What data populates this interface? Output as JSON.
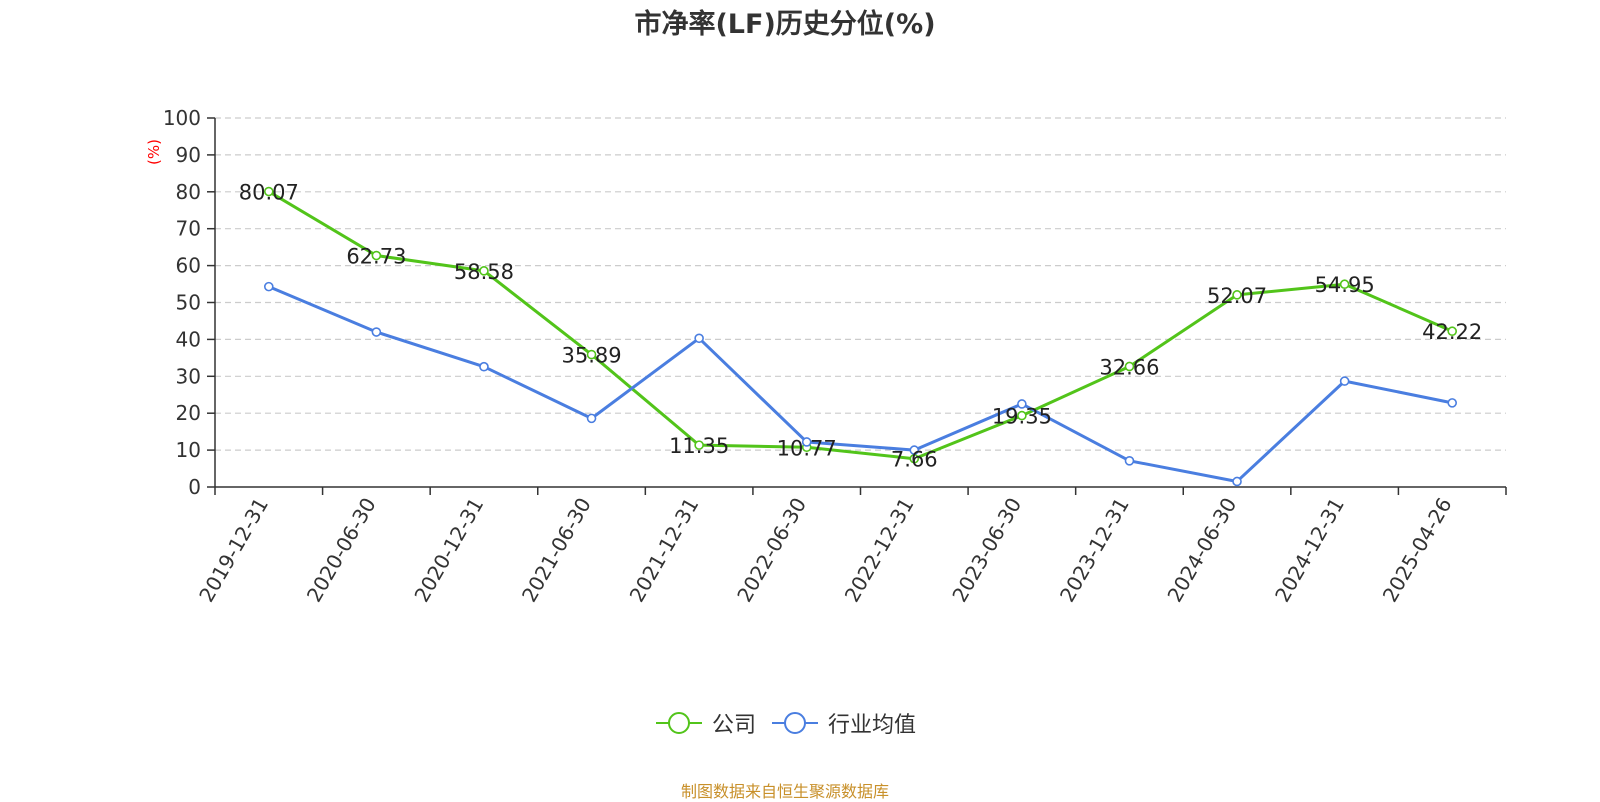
{
  "chart_data": {
    "type": "line",
    "title": "市净率(LF)历史分位(%)",
    "ylabel": "(%)",
    "xlabel": "",
    "ylim": [
      0,
      100
    ],
    "yticks": [
      0,
      10,
      20,
      30,
      40,
      50,
      60,
      70,
      80,
      90,
      100
    ],
    "grid": true,
    "legend_position": "bottom",
    "categories": [
      "2019-12-31",
      "2020-06-30",
      "2020-12-31",
      "2021-06-30",
      "2021-12-31",
      "2022-06-30",
      "2022-12-31",
      "2023-06-30",
      "2023-12-31",
      "2024-06-30",
      "2024-12-31",
      "2025-04-26"
    ],
    "series": [
      {
        "name": "公司",
        "color": "#52c41a",
        "values": [
          80.07,
          62.73,
          58.58,
          35.89,
          11.35,
          10.77,
          7.66,
          19.35,
          32.66,
          52.07,
          54.95,
          42.22
        ],
        "data_labels": [
          "80.07",
          "62.73",
          "58.58",
          "35.89",
          "11.35",
          "10.77",
          "7.66",
          "19.35",
          "32.66",
          "52.07",
          "54.95",
          "42.22"
        ]
      },
      {
        "name": "行业均值",
        "color": "#4a7ee0",
        "values": [
          54.3,
          42.0,
          32.6,
          18.6,
          40.3,
          12.2,
          10.0,
          22.5,
          7.1,
          1.5,
          28.7,
          22.8
        ]
      }
    ]
  },
  "footer": {
    "source": "制图数据来自恒生聚源数据库"
  },
  "colors": {
    "axis": "#333333",
    "grid": "#cccccc",
    "ylabel": "#ff0000",
    "source": "#c8902a"
  }
}
